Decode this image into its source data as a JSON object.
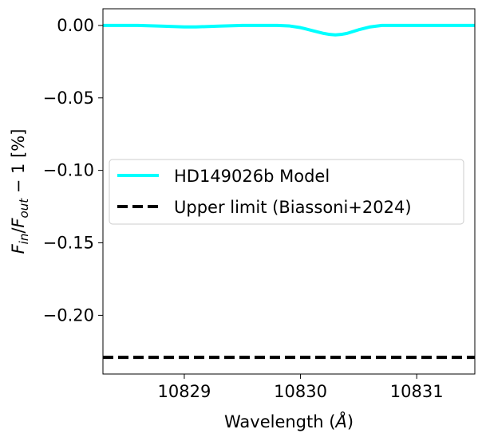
{
  "chart_data": {
    "type": "line",
    "xlabel": "Wavelength (Å)",
    "ylabel": "F_in/F_out − 1 [%]",
    "xlim": [
      10828.3,
      10831.5
    ],
    "ylim": [
      -0.2405,
      0.0115
    ],
    "xticks": [
      10829,
      10830,
      10831
    ],
    "yticks": [
      0.0,
      -0.05,
      -0.1,
      -0.15,
      -0.2
    ],
    "xtick_labels": [
      "10829",
      "10830",
      "10831"
    ],
    "ytick_labels": [
      "0.00",
      "−0.05",
      "−0.10",
      "−0.15",
      "−0.20"
    ],
    "legend_position": "center-right",
    "series": [
      {
        "name": "HD149026b Model",
        "color": "#00ffff",
        "style": "solid",
        "x": [
          10828.3,
          10828.6,
          10828.8,
          10829.0,
          10829.1,
          10829.3,
          10829.5,
          10829.8,
          10829.9,
          10830.0,
          10830.1,
          10830.2,
          10830.25,
          10830.3,
          10830.35,
          10830.4,
          10830.5,
          10830.6,
          10830.7,
          10831.0,
          10831.5
        ],
        "y": [
          0.0,
          0.0,
          -0.0005,
          -0.001,
          -0.001,
          -0.0005,
          0.0,
          0.0,
          -0.0003,
          -0.0015,
          -0.0035,
          -0.0055,
          -0.0062,
          -0.0065,
          -0.0062,
          -0.0055,
          -0.003,
          -0.001,
          0.0,
          0.0,
          0.0
        ]
      },
      {
        "name": "Upper limit (Biassoni+2024)",
        "color": "#000000",
        "style": "dashed",
        "x": [
          10828.3,
          10831.5
        ],
        "y": [
          -0.229,
          -0.229
        ]
      }
    ]
  }
}
